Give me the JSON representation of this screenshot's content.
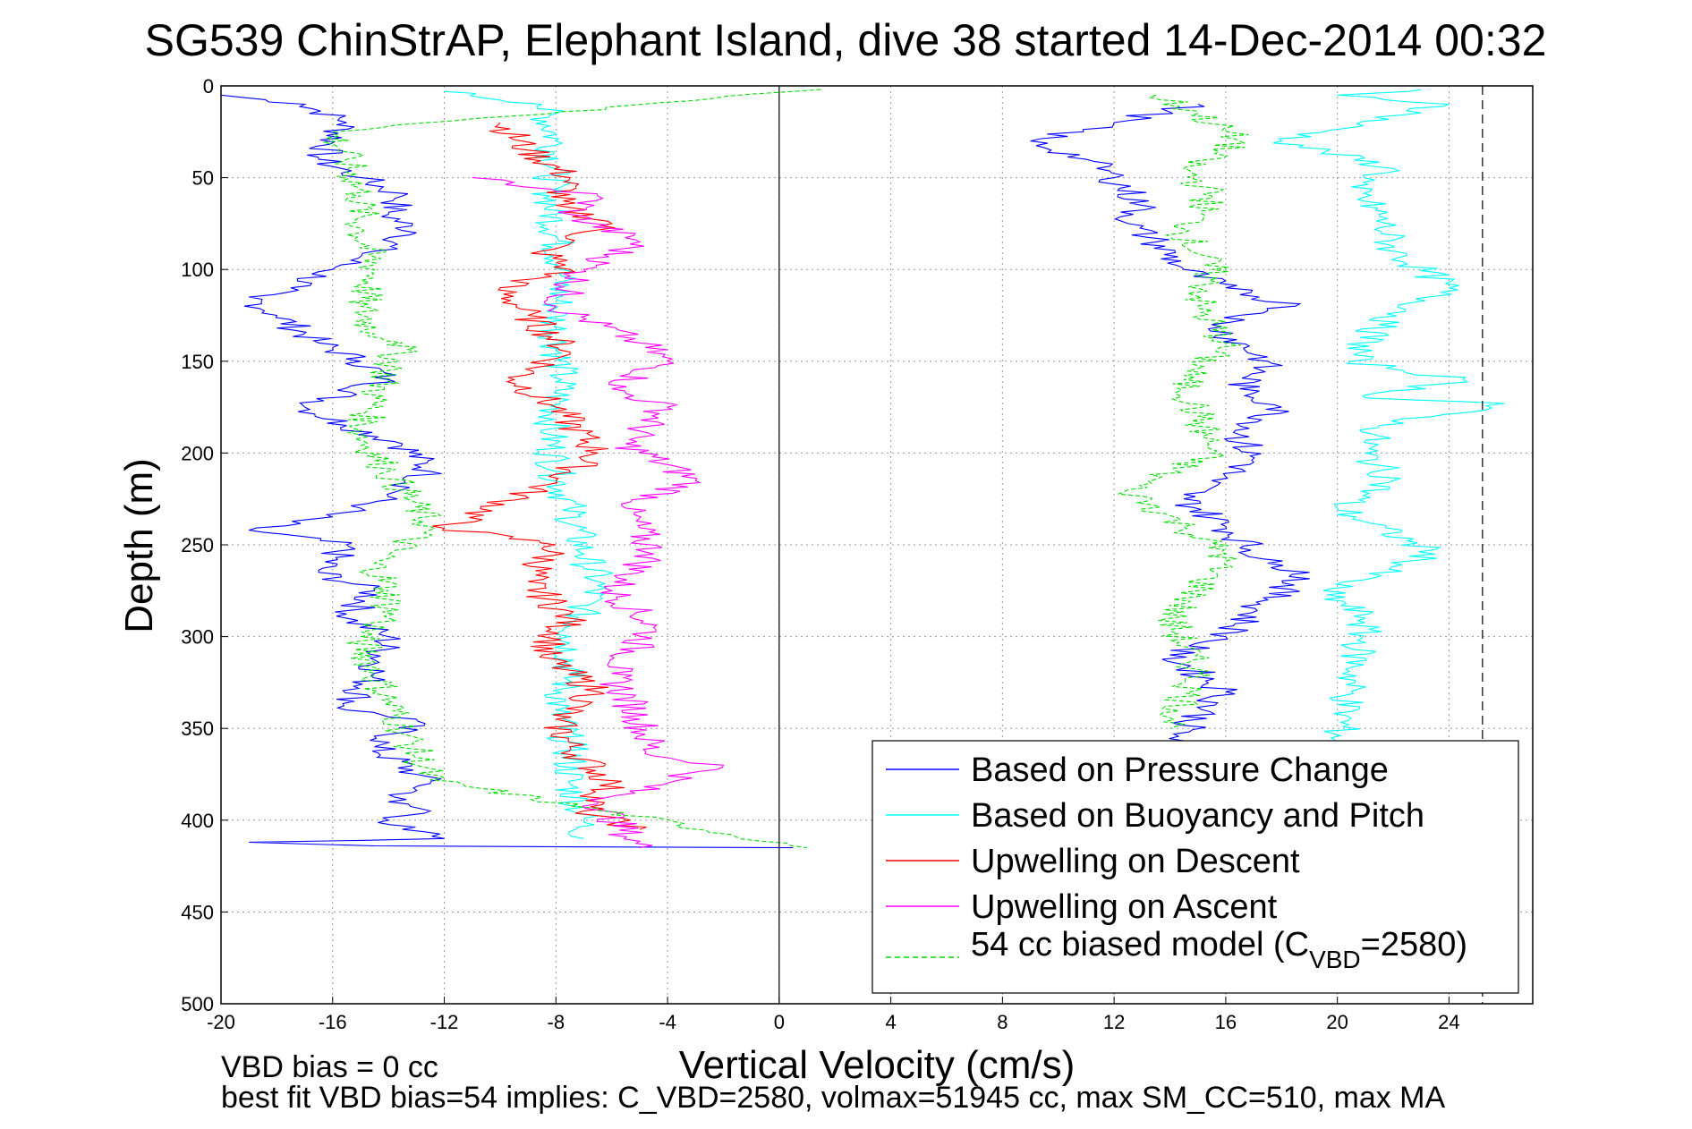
{
  "chart_data": {
    "type": "line",
    "title": "SG539 ChinStrAP, Elephant Island, dive 38 started 14-Dec-2014 00:32",
    "xlabel": "Vertical Velocity (cm/s)",
    "ylabel": "Depth (m)",
    "xlim": [
      -20,
      27
    ],
    "ylim": [
      500,
      0
    ],
    "y_reversed": true,
    "grid": true,
    "x_ticks": [
      -20,
      -16,
      -12,
      -8,
      -4,
      0,
      4,
      8,
      12,
      16,
      20,
      24
    ],
    "y_ticks": [
      0,
      50,
      100,
      150,
      200,
      250,
      300,
      350,
      400,
      450,
      500
    ],
    "reference_lines": {
      "zero_velocity": 0,
      "dashed_vertical": 25.2
    },
    "legend_position": "bottom-right",
    "legend": {
      "entries": [
        {
          "label": "Based on Pressure Change",
          "color": "#0000ff",
          "dash": "solid"
        },
        {
          "label": "Based on Buoyancy and Pitch",
          "color": "#00ffff",
          "dash": "solid"
        },
        {
          "label": "Upwelling on Descent",
          "color": "#ff0000",
          "dash": "solid"
        },
        {
          "label": "Upwelling on Ascent",
          "color": "#ff00ff",
          "dash": "solid"
        }
      ],
      "model_entry": {
        "prefix": "54 cc biased model (C",
        "subscript": "VBD",
        "suffix": "=2580)",
        "color": "#00dd00",
        "dash": "dashed"
      }
    },
    "series": [
      {
        "name": "Based on Pressure Change",
        "color": "#0000ff",
        "dash": "solid",
        "x": [
          -20.0,
          -17.0,
          -15.5,
          -16.5,
          -15.0,
          -13.5,
          -14.0,
          -13.0,
          -14.5,
          -16.0,
          -17.5,
          -19.0,
          -18.0,
          -16.5,
          -15.0,
          -14.0,
          -17.0,
          -15.5,
          -13.5,
          -12.5,
          -13.5,
          -15.0,
          -19.0,
          -15.5,
          -16.5,
          -14.5,
          -15.5,
          -14.0,
          -14.5,
          -15.5,
          -13.0,
          -14.5,
          -13.0,
          -12.5,
          -14.0,
          -12.5,
          -14.0,
          -13.5,
          -12.0,
          -19.0,
          -14.5,
          0.5
        ],
        "y": [
          5,
          10,
          20,
          40,
          50,
          60,
          70,
          80,
          90,
          100,
          110,
          115,
          125,
          140,
          150,
          160,
          175,
          185,
          195,
          210,
          220,
          230,
          242,
          250,
          265,
          275,
          290,
          300,
          320,
          340,
          345,
          360,
          375,
          380,
          390,
          395,
          400,
          405,
          410,
          412,
          414,
          415
        ]
      },
      {
        "name": "Based on Buoyancy and Pitch",
        "color": "#00ffff",
        "dash": "solid",
        "x": [
          -12.0,
          -8.5,
          -8.0,
          -8.2,
          -7.8,
          -8.0,
          -7.8,
          -8.2,
          -8.0,
          -7.5,
          -7.0,
          -6.5,
          -7.0,
          -7.5,
          -7.5,
          -8.0,
          -7.5,
          -7.5,
          -7.0,
          -7.0
        ],
        "y": [
          3,
          10,
          30,
          60,
          100,
          130,
          160,
          190,
          210,
          230,
          255,
          270,
          285,
          300,
          320,
          340,
          360,
          380,
          400,
          410
        ]
      },
      {
        "name": "Upwelling on Descent",
        "color": "#ff0000",
        "dash": "solid",
        "x": [
          -10.0,
          -9.0,
          -7.5,
          -8.0,
          -6.0,
          -8.5,
          -7.5,
          -10.0,
          -9.0,
          -7.5,
          -9.5,
          -8.0,
          -6.5,
          -8.0,
          -12.0,
          -8.0,
          -9.0,
          -7.5,
          -8.5,
          -6.5,
          -8.0,
          -7.5,
          -6.0,
          -7.0,
          -5.0
        ],
        "y": [
          20,
          35,
          50,
          65,
          75,
          90,
          100,
          110,
          125,
          145,
          160,
          175,
          200,
          215,
          241,
          250,
          270,
          290,
          310,
          330,
          345,
          360,
          380,
          395,
          405
        ]
      },
      {
        "name": "Upwelling on Ascent",
        "color": "#ff00ff",
        "dash": "solid",
        "x": [
          -11.0,
          -6.5,
          -7.5,
          -5.0,
          -7.0,
          -8.0,
          -5.0,
          -4.0,
          -6.0,
          -4.0,
          -5.5,
          -3.0,
          -5.5,
          -4.5,
          -6.0,
          -4.5,
          -6.0,
          -5.0,
          -4.5,
          -2.0,
          -6.5,
          -5.0
        ],
        "y": [
          50,
          60,
          70,
          85,
          100,
          120,
          140,
          150,
          165,
          175,
          195,
          215,
          230,
          255,
          275,
          295,
          320,
          345,
          365,
          370,
          390,
          415
        ]
      },
      {
        "name": "54 cc biased model (CVBD=2580)",
        "color": "#00dd00",
        "dash": "dashed",
        "x": [
          1.5,
          -16.0,
          -15.5,
          -15.0,
          -15.0,
          -14.5,
          -15.0,
          -14.5,
          -13.5,
          -14.0,
          -14.5,
          -15.0,
          -14.0,
          -12.5,
          -14.5,
          -14.0,
          -14.0,
          -15.0,
          -14.5,
          -13.5,
          -12.5,
          1.0
        ],
        "y": [
          2,
          25,
          40,
          60,
          80,
          100,
          120,
          135,
          140,
          155,
          170,
          190,
          210,
          240,
          260,
          275,
          290,
          300,
          320,
          350,
          378,
          415
        ]
      },
      {
        "name": "Based on Pressure Change",
        "color": "#0000ff",
        "dash": "solid",
        "x": [
          15.0,
          12.0,
          9.0,
          11.0,
          12.0,
          13.0,
          12.5,
          13.5,
          14.5,
          16.0,
          18.5,
          15.5,
          17.5,
          16.5,
          18.0,
          16.5,
          17.0,
          15.5,
          14.5,
          16.0,
          17.5,
          19.0,
          17.5,
          16.0,
          14.0,
          16.0,
          14.0
        ],
        "y": [
          10,
          20,
          30,
          40,
          50,
          65,
          75,
          85,
          100,
          110,
          120,
          130,
          150,
          165,
          175,
          190,
          205,
          215,
          225,
          240,
          260,
          265,
          280,
          300,
          310,
          330,
          358
        ]
      },
      {
        "name": "Based on Buoyancy and Pitch",
        "color": "#00ffff",
        "dash": "solid",
        "x": [
          23.0,
          20.0,
          24.0,
          18.0,
          22.0,
          20.5,
          21.5,
          22.0,
          24.0,
          21.5,
          20.5,
          24.5,
          21.0,
          26.0,
          21.5,
          21.0,
          22.0,
          20.0,
          23.5,
          19.5,
          21.0,
          20.0
        ],
        "y": [
          2,
          5,
          10,
          30,
          45,
          55,
          70,
          90,
          110,
          130,
          150,
          160,
          170,
          173,
          185,
          200,
          215,
          230,
          255,
          275,
          290,
          360
        ]
      },
      {
        "name": "54 cc biased model (CVBD=2580)",
        "color": "#00dd00",
        "dash": "dashed",
        "x": [
          13.5,
          15.0,
          16.5,
          14.5,
          15.5,
          14.5,
          15.5,
          15.0,
          16.0,
          14.5,
          15.0,
          15.5,
          12.5,
          14.5,
          16.0,
          15.0,
          14.0,
          15.0,
          14.0
        ],
        "y": [
          5,
          15,
          30,
          45,
          60,
          80,
          100,
          120,
          140,
          160,
          180,
          200,
          220,
          240,
          255,
          275,
          290,
          320,
          350
        ]
      }
    ],
    "footnotes": {
      "vbd_bias": "VBD bias = 0 cc",
      "best_fit": "best fit VBD bias=54 implies: C_VBD=2580, volmax=51945 cc, max SM_CC=510, max MA"
    }
  }
}
